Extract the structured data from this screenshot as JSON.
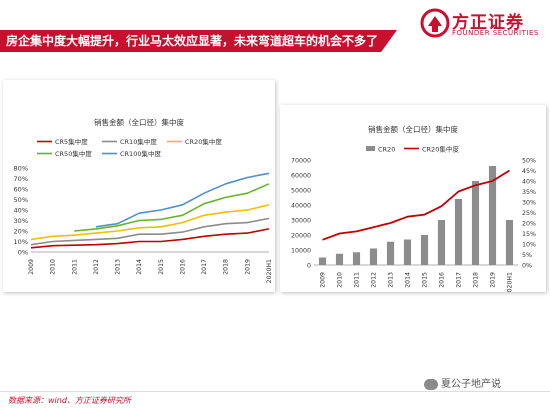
{
  "header": {
    "title": "房企集中度大幅提升，行业马太效应显著，未来弯道超车的机会不多了",
    "logo_cn": "方正证券",
    "logo_en": "FOUNDER SECURITIES"
  },
  "chart_data": [
    {
      "type": "line",
      "title": "销售金额（全口径）集中度",
      "x": [
        "2009",
        "2010",
        "2011",
        "2012",
        "2013",
        "2014",
        "2015",
        "2016",
        "2017",
        "2018",
        "2019",
        "2020H1"
      ],
      "ylim": [
        0,
        80
      ],
      "yticks": [
        "0%",
        "10%",
        "20%",
        "30%",
        "40%",
        "50%",
        "60%",
        "70%",
        "80%"
      ],
      "legend": "top",
      "series": [
        {
          "name": "CR5集中度",
          "color": "#c00000",
          "values": [
            4,
            6,
            6.5,
            7,
            8,
            10,
            10,
            12,
            15,
            17,
            18,
            22
          ]
        },
        {
          "name": "CR10集中度",
          "color": "#8c8c8c",
          "values": [
            7,
            10,
            11,
            12,
            13,
            17,
            17,
            19,
            24,
            27,
            28,
            32
          ]
        },
        {
          "name": "CR20集中度",
          "color": "#f0c000",
          "values": [
            12,
            15,
            16,
            18,
            20,
            23,
            24,
            28,
            35,
            38,
            40,
            45
          ]
        },
        {
          "name": "CR50集中度",
          "color": "#66b32e",
          "values": [
            null,
            null,
            20,
            22,
            25,
            30,
            31,
            35,
            46,
            52,
            56,
            65
          ]
        },
        {
          "name": "CR100集中度",
          "color": "#4f8fd0",
          "values": [
            null,
            null,
            null,
            24,
            27,
            37,
            40,
            45,
            56,
            65,
            71,
            75
          ]
        }
      ]
    },
    {
      "type": "bar",
      "title": "销售金额（全口径）集中度",
      "categories": [
        "2009",
        "2010",
        "2011",
        "2012",
        "2013",
        "2014",
        "2015",
        "2016",
        "2017",
        "2018",
        "2019",
        "2020H1"
      ],
      "ylim": [
        0,
        70000
      ],
      "yticks": [
        "0",
        "10000",
        "20000",
        "30000",
        "40000",
        "50000",
        "60000",
        "70000"
      ],
      "y2lim": [
        0,
        50
      ],
      "y2ticks": [
        "0%",
        "5%",
        "10%",
        "15%",
        "20%",
        "25%",
        "30%",
        "35%",
        "40%",
        "45%",
        "50%"
      ],
      "legend": "top",
      "series": [
        {
          "name": "CR20",
          "kind": "bar",
          "axis": "left",
          "color": "#8c8c8c",
          "values": [
            5000,
            7500,
            8500,
            11000,
            15500,
            17000,
            20000,
            30000,
            44000,
            56000,
            66000,
            30000
          ]
        },
        {
          "name": "CR20集中度",
          "kind": "line",
          "axis": "right",
          "color": "#c00000",
          "values": [
            12,
            15,
            16,
            18,
            20,
            23,
            24,
            28,
            35,
            38,
            40,
            45
          ]
        }
      ]
    }
  ],
  "footer": {
    "source": "数据来源：wind、方正证券研究所",
    "watermark": "夏公子地产说"
  },
  "colors": {
    "brand": "#c8102e"
  }
}
